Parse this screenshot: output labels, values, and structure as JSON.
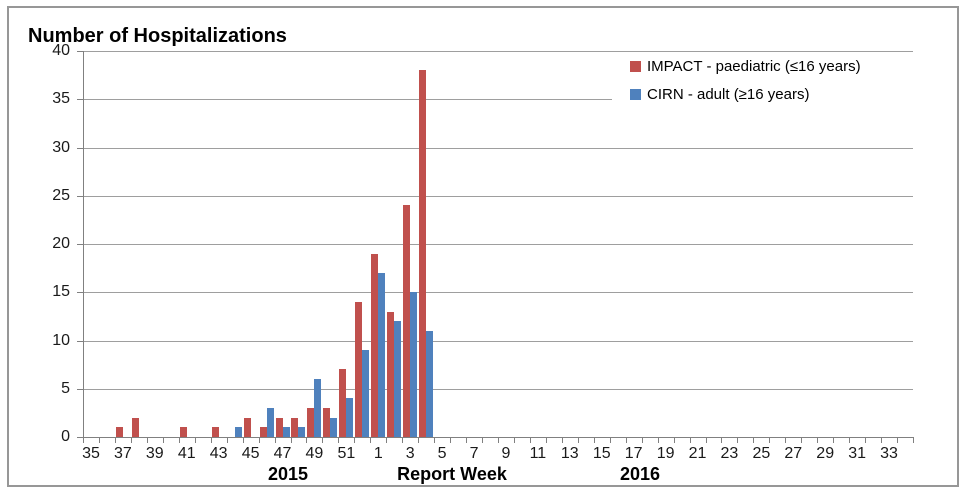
{
  "chart": {
    "title": "Number of Hospitalizations",
    "x_axis_title": "Report Week",
    "year_left": "2015",
    "year_right": "2016",
    "colors": {
      "impact_red": "#C0504D",
      "cirn_blue": "#4F81BD",
      "gridline_gray": "#9e9e9e",
      "axis_gray": "#808080",
      "frame_border_gray": "#979797"
    }
  },
  "chart_data": {
    "type": "bar",
    "title": "Number of Hospitalizations",
    "xlabel": "Report Week",
    "ylabel": "Number of Hospitalizations",
    "ylim": [
      0,
      40
    ],
    "y_ticks": [
      0,
      5,
      10,
      15,
      20,
      25,
      30,
      35,
      40
    ],
    "grid": true,
    "legend_position": "top-right",
    "x_year_groups": [
      {
        "year": "2015",
        "weeks": "35-52"
      },
      {
        "year": "2016",
        "weeks": "1-34"
      }
    ],
    "categories": [
      "35",
      "36",
      "37",
      "38",
      "39",
      "40",
      "41",
      "42",
      "43",
      "44",
      "45",
      "46",
      "47",
      "48",
      "49",
      "50",
      "51",
      "52",
      "1",
      "2",
      "3",
      "4",
      "5",
      "6",
      "7",
      "8",
      "9",
      "10",
      "11",
      "12",
      "13",
      "14",
      "15",
      "16",
      "17",
      "18",
      "19",
      "20",
      "21",
      "22",
      "23",
      "24",
      "25",
      "26",
      "27",
      "28",
      "29",
      "30",
      "31",
      "32",
      "33",
      "34"
    ],
    "x_tick_labels": [
      "35",
      "37",
      "39",
      "41",
      "43",
      "45",
      "47",
      "49",
      "51",
      "1",
      "3",
      "5",
      "7",
      "9",
      "11",
      "13",
      "15",
      "17",
      "19",
      "21",
      "23",
      "25",
      "27",
      "29",
      "31",
      "33"
    ],
    "series": [
      {
        "name": "IMPACT - paediatric (≤16 years)",
        "color": "#C0504D",
        "values": [
          0,
          0,
          1,
          2,
          0,
          0,
          1,
          0,
          1,
          0,
          2,
          1,
          2,
          2,
          3,
          3,
          7,
          14,
          19,
          13,
          24,
          38,
          0,
          0,
          0,
          0,
          0,
          0,
          0,
          0,
          0,
          0,
          0,
          0,
          0,
          0,
          0,
          0,
          0,
          0,
          0,
          0,
          0,
          0,
          0,
          0,
          0,
          0,
          0,
          0,
          0,
          0
        ]
      },
      {
        "name": "CIRN - adult (≥16 years)",
        "color": "#4F81BD",
        "values": [
          0,
          0,
          0,
          0,
          0,
          0,
          0,
          0,
          0,
          1,
          0,
          3,
          1,
          1,
          6,
          2,
          4,
          9,
          17,
          12,
          15,
          11,
          0,
          0,
          0,
          0,
          0,
          0,
          0,
          0,
          0,
          0,
          0,
          0,
          0,
          0,
          0,
          0,
          0,
          0,
          0,
          0,
          0,
          0,
          0,
          0,
          0,
          0,
          0,
          0,
          0,
          0
        ]
      }
    ]
  }
}
